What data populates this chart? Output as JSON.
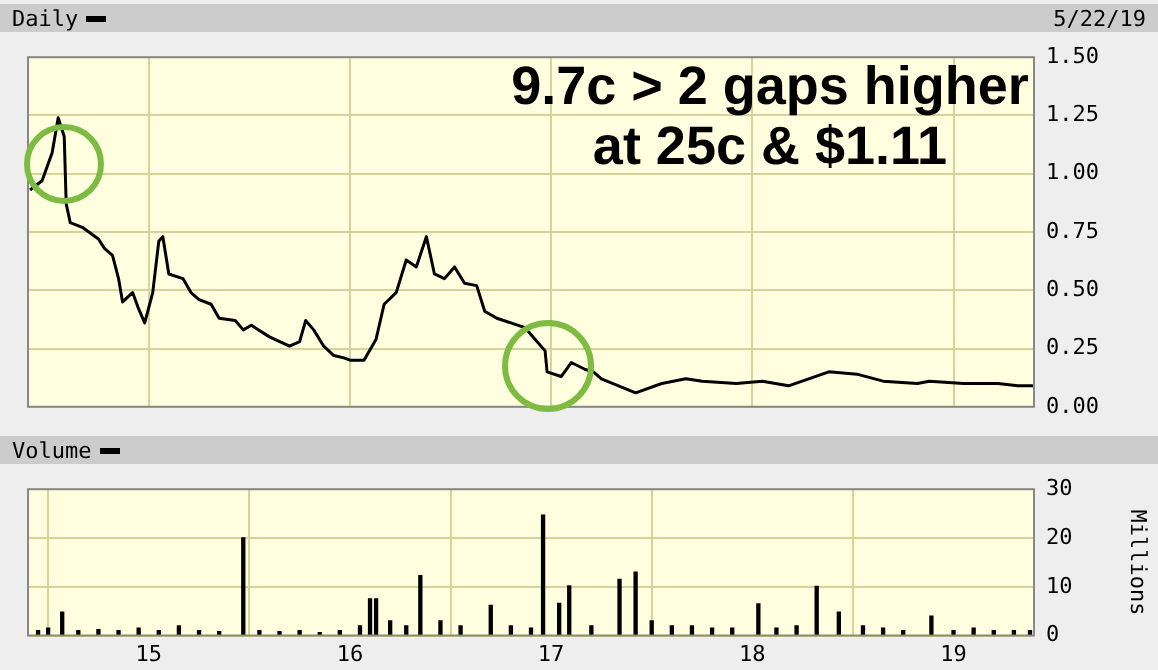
{
  "chart_data": [
    {
      "type": "line",
      "title": "Daily",
      "subtitle": "5/22/19",
      "annotations": [
        "9.7c > 2 gaps higher at 25c & $1.11"
      ],
      "x": [
        2014.41,
        2014.47,
        2014.52,
        2014.55,
        2014.58,
        2014.59,
        2014.61,
        2014.67,
        2014.75,
        2014.78,
        2014.82,
        2014.85,
        2014.87,
        2014.92,
        2014.95,
        2014.98,
        2015.02,
        2015.05,
        2015.07,
        2015.1,
        2015.17,
        2015.21,
        2015.25,
        2015.31,
        2015.35,
        2015.43,
        2015.47,
        2015.51,
        2015.6,
        2015.7,
        2015.75,
        2015.78,
        2015.82,
        2015.87,
        2015.92,
        2015.97,
        2016.0,
        2016.07,
        2016.13,
        2016.17,
        2016.23,
        2016.28,
        2016.33,
        2016.38,
        2016.42,
        2016.47,
        2016.52,
        2016.57,
        2016.63,
        2016.67,
        2016.73,
        2016.8,
        2016.87,
        2016.92,
        2016.97,
        2016.98,
        2017.05,
        2017.1,
        2017.17,
        2017.21,
        2017.25,
        2017.42,
        2017.55,
        2017.67,
        2017.75,
        2017.92,
        2018.05,
        2018.18,
        2018.28,
        2018.38,
        2018.52,
        2018.65,
        2018.82,
        2018.88,
        2019.05,
        2019.22,
        2019.32,
        2019.4
      ],
      "values": [
        0.93,
        0.97,
        1.09,
        1.24,
        1.16,
        0.87,
        0.79,
        0.77,
        0.72,
        0.68,
        0.65,
        0.55,
        0.45,
        0.49,
        0.42,
        0.36,
        0.49,
        0.71,
        0.73,
        0.57,
        0.55,
        0.49,
        0.46,
        0.44,
        0.38,
        0.37,
        0.33,
        0.35,
        0.3,
        0.26,
        0.28,
        0.37,
        0.33,
        0.26,
        0.22,
        0.21,
        0.2,
        0.2,
        0.29,
        0.44,
        0.49,
        0.63,
        0.6,
        0.73,
        0.57,
        0.55,
        0.6,
        0.53,
        0.52,
        0.41,
        0.38,
        0.36,
        0.34,
        0.29,
        0.24,
        0.15,
        0.13,
        0.19,
        0.16,
        0.15,
        0.12,
        0.06,
        0.1,
        0.12,
        0.11,
        0.1,
        0.11,
        0.09,
        0.12,
        0.15,
        0.14,
        0.11,
        0.1,
        0.11,
        0.1,
        0.1,
        0.09,
        0.09
      ],
      "color": "#000000",
      "xlim": [
        2014.4,
        2019.4
      ],
      "ylim": [
        0,
        1.5
      ],
      "yticks": [
        {
          "value": 0,
          "label": "0.00"
        },
        {
          "value": 0.25,
          "label": "0.25"
        },
        {
          "value": 0.5,
          "label": "0.50"
        },
        {
          "value": 0.75,
          "label": "0.75"
        },
        {
          "value": 1,
          "label": "1.00"
        },
        {
          "value": 1.25,
          "label": "1.25"
        },
        {
          "value": 1.5,
          "label": "1.50"
        }
      ],
      "xticks": [
        2015,
        2016,
        2017,
        2018,
        2019
      ],
      "tick_labels": "y",
      "grid": true,
      "legend": false,
      "marker": "none"
    },
    {
      "type": "bar",
      "title": "Volume",
      "ylabel": "Millions",
      "x": [
        2014.45,
        2014.5,
        2014.57,
        2014.65,
        2014.75,
        2014.85,
        2014.95,
        2015.05,
        2015.15,
        2015.25,
        2015.35,
        2015.47,
        2015.55,
        2015.65,
        2015.75,
        2015.85,
        2015.95,
        2016.05,
        2016.1,
        2016.13,
        2016.2,
        2016.28,
        2016.35,
        2016.45,
        2016.55,
        2016.7,
        2016.8,
        2016.9,
        2016.96,
        2017.04,
        2017.09,
        2017.2,
        2017.34,
        2017.42,
        2017.5,
        2017.6,
        2017.7,
        2017.8,
        2017.9,
        2018.03,
        2018.12,
        2018.22,
        2018.32,
        2018.43,
        2018.55,
        2018.65,
        2018.75,
        2018.89,
        2019.0,
        2019.1,
        2019.2,
        2019.3,
        2019.38
      ],
      "values": [
        1,
        1.5,
        4.8,
        1,
        1.2,
        1,
        1.5,
        1,
        2,
        1,
        0.8,
        20,
        1,
        0.8,
        1,
        0.6,
        1,
        2,
        7.5,
        7.5,
        3,
        2,
        12.3,
        3,
        2,
        6.2,
        2,
        1.5,
        24.7,
        6.6,
        10.2,
        2,
        11.5,
        13,
        3,
        2,
        2,
        1.5,
        1.5,
        6.5,
        1.5,
        2,
        10.1,
        4.8,
        2,
        1.5,
        1,
        4,
        1,
        1.5,
        1,
        1,
        1
      ],
      "color": "#000000",
      "xlim": [
        2014.4,
        2019.4
      ],
      "ylim": [
        0,
        30
      ],
      "yticks": [
        0,
        10,
        20,
        30
      ],
      "xticks": [
        {
          "value": 2015,
          "label": "15"
        },
        {
          "value": 2016,
          "label": "16"
        },
        {
          "value": 2017,
          "label": "17"
        },
        {
          "value": 2018,
          "label": "18"
        },
        {
          "value": 2019,
          "label": "19"
        }
      ],
      "grid": true,
      "legend": false
    }
  ]
}
